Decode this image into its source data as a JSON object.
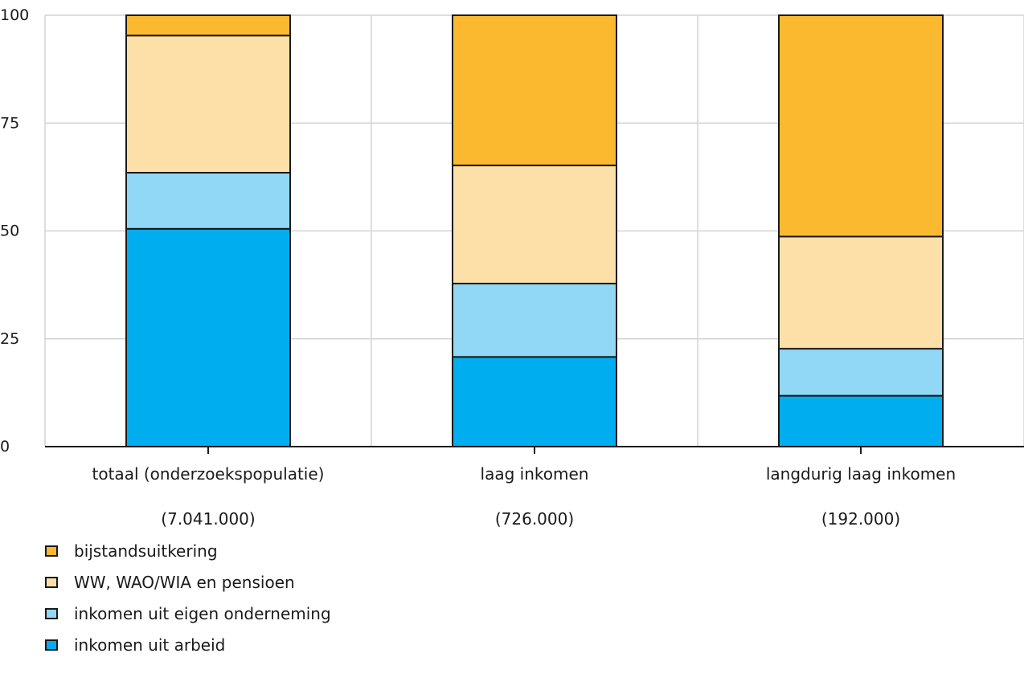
{
  "chart_data": {
    "type": "bar",
    "stacked": true,
    "categories": [
      "totaal (onderzoekspopulatie)",
      "laag inkomen",
      "langdurig laag inkomen"
    ],
    "category_counts": [
      "(7.041.000)",
      "(726.000)",
      "(192.000)"
    ],
    "series": [
      {
        "name": "inkomen uit arbeid",
        "values": [
          50.5,
          20.8,
          11.8
        ],
        "color": "#00ADEE"
      },
      {
        "name": "inkomen uit eigen onderneming",
        "values": [
          13.0,
          17.0,
          10.9
        ],
        "color": "#91D8F6"
      },
      {
        "name": "WW, WAO/WIA en pensioen",
        "values": [
          31.8,
          27.4,
          26.0
        ],
        "color": "#FDDFA8"
      },
      {
        "name": "bijstandsuitkering",
        "values": [
          4.7,
          34.8,
          51.3
        ],
        "color": "#FBB92F"
      }
    ],
    "legend_order": [
      "bijstandsuitkering",
      "WW, WAO/WIA en pensioen",
      "inkomen uit eigen onderneming",
      "inkomen uit arbeid"
    ],
    "ylim": [
      0,
      100
    ],
    "yticks": [
      "0",
      "25",
      "50",
      "75",
      "100"
    ],
    "grid": true,
    "legend_position": "bottom-left"
  }
}
